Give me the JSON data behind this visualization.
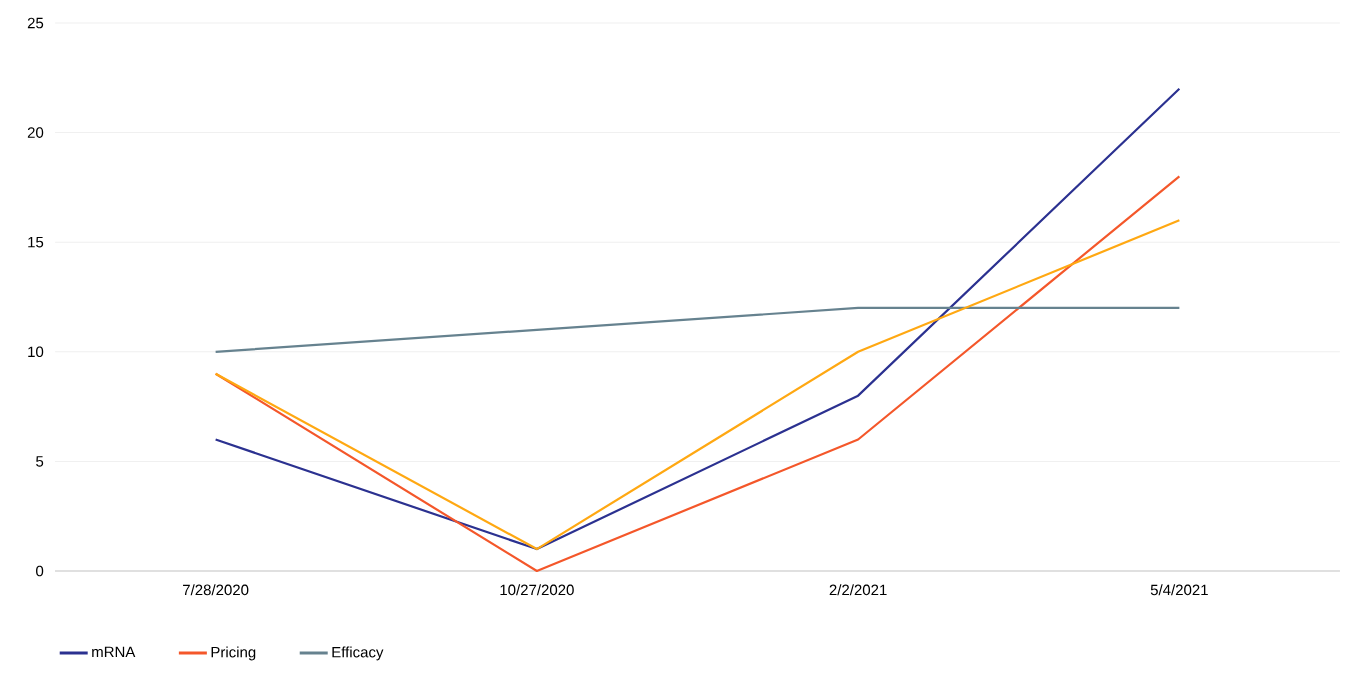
{
  "chart_data": {
    "type": "line",
    "categories": [
      "7/28/2020",
      "10/27/2020",
      "2/2/2021",
      "5/4/2021"
    ],
    "series": [
      {
        "name": "mRNA",
        "color": "#2b3190",
        "values": [
          6,
          1,
          8,
          22
        ]
      },
      {
        "name": "Pricing",
        "color": "#f4572a",
        "values": [
          9,
          0,
          6,
          18
        ]
      },
      {
        "name": "Efficacy",
        "color": "#66828f",
        "values": [
          10,
          11,
          12,
          12
        ]
      },
      {
        "color": "#ffa812",
        "values": [
          9,
          1,
          10,
          16
        ]
      }
    ],
    "ylim": [
      0,
      25
    ],
    "yticks": [
      0,
      5,
      10,
      15,
      20,
      25
    ],
    "grid": "y",
    "legend": "bottom",
    "marker": "none",
    "line_style": "solid"
  }
}
